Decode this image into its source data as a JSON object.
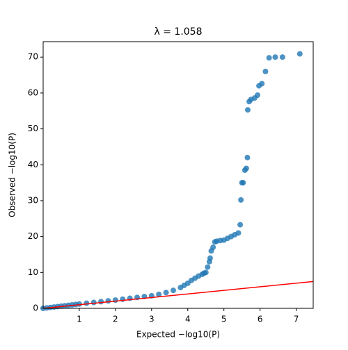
{
  "chart_data": {
    "type": "scatter",
    "title": "λ = 1.058",
    "x_label": "Expected −log10(P)",
    "y_label": "Observed −log10(P)",
    "xlim": [
      0,
      7.47
    ],
    "ylim": [
      0,
      74.3
    ],
    "xticks": [
      1,
      2,
      3,
      4,
      5,
      6,
      7
    ],
    "yticks": [
      0,
      10,
      20,
      30,
      40,
      50,
      60,
      70
    ],
    "series": [
      {
        "color": "#1f77b4",
        "x": [
          0.0,
          0.1,
          0.2,
          0.3,
          0.4,
          0.5,
          0.6,
          0.7,
          0.8,
          0.9,
          1.0,
          1.2,
          1.4,
          1.6,
          1.8,
          2.0,
          2.2,
          2.4,
          2.6,
          2.8,
          3.0,
          3.2,
          3.4,
          3.6,
          3.8,
          3.9,
          4.0,
          4.1,
          4.2,
          4.3,
          4.4,
          4.45,
          4.5,
          4.55,
          4.6,
          4.62,
          4.65,
          4.7,
          4.75,
          4.8,
          4.9,
          5.0,
          5.1,
          5.2,
          5.3,
          5.4,
          5.45,
          5.47,
          5.5,
          5.53,
          5.58,
          5.62,
          5.65,
          5.66,
          5.7,
          5.75,
          5.85,
          5.93,
          5.97,
          6.05,
          6.15,
          6.25,
          6.42,
          6.62,
          7.1
        ],
        "values": [
          0.0,
          0.12,
          0.25,
          0.37,
          0.49,
          0.6,
          0.72,
          0.84,
          0.96,
          1.08,
          1.2,
          1.42,
          1.64,
          1.86,
          2.08,
          2.3,
          2.55,
          2.8,
          3.05,
          3.3,
          3.5,
          3.9,
          4.4,
          5.0,
          5.8,
          6.4,
          7.0,
          7.8,
          8.4,
          9.0,
          9.5,
          9.8,
          10.0,
          11.5,
          13.0,
          14.0,
          16.0,
          17.0,
          18.5,
          18.7,
          18.9,
          19.0,
          19.5,
          20.0,
          20.5,
          21.0,
          23.3,
          30.2,
          35.0,
          35.0,
          38.5,
          39.0,
          42.0,
          55.3,
          57.6,
          58.2,
          58.6,
          59.4,
          62.0,
          62.6,
          66.0,
          69.8,
          70.0,
          70.0,
          70.9
        ]
      }
    ],
    "reference_line": {
      "color": "red",
      "x": [
        0,
        7.47
      ],
      "values": [
        0,
        7.47
      ]
    }
  }
}
